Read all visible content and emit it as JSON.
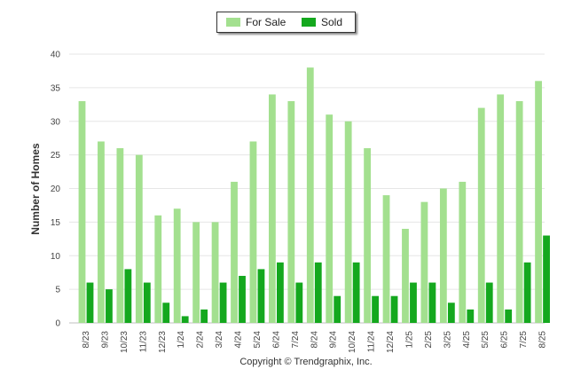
{
  "chart_data": {
    "type": "bar",
    "categories": [
      "8/23",
      "9/23",
      "10/23",
      "11/23",
      "12/23",
      "1/24",
      "2/24",
      "3/24",
      "4/24",
      "5/24",
      "6/24",
      "7/24",
      "8/24",
      "9/24",
      "10/24",
      "11/24",
      "12/24",
      "1/25",
      "2/25",
      "3/25",
      "4/25",
      "5/25",
      "6/25",
      "7/25",
      "8/25"
    ],
    "series": [
      {
        "name": "For Sale",
        "color": "#a3e08f",
        "values": [
          33,
          27,
          26,
          25,
          16,
          17,
          15,
          15,
          21,
          27,
          34,
          33,
          38,
          31,
          30,
          26,
          19,
          14,
          18,
          20,
          21,
          32,
          34,
          33,
          36
        ]
      },
      {
        "name": "Sold",
        "color": "#14a81e",
        "values": [
          6,
          5,
          8,
          6,
          3,
          1,
          2,
          6,
          7,
          8,
          9,
          6,
          9,
          4,
          9,
          4,
          4,
          6,
          6,
          3,
          2,
          6,
          2,
          9,
          13
        ]
      }
    ],
    "ylabel": "Number of Homes",
    "xlabel": "",
    "ylim": [
      0,
      40
    ],
    "yticks": [
      0,
      5,
      10,
      15,
      20,
      25,
      30,
      35,
      40
    ],
    "grid": true,
    "legend_position": "top-center"
  },
  "legend": {
    "for_sale_label": "For Sale",
    "sold_label": "Sold"
  },
  "copyright": "Copyright © Trendgraphix, Inc."
}
